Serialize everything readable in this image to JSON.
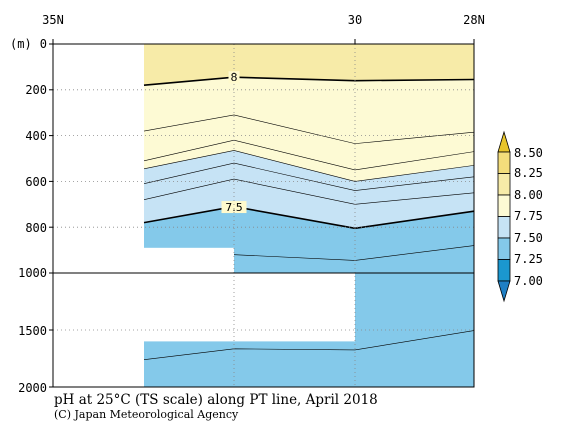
{
  "chart_data": {
    "type": "contour",
    "title": "pH at 25°C (TS scale) along PT line, April 2018",
    "credit": "(C) Japan Meteorological Agency",
    "y_unit_label": "(m)",
    "x_ticks": [
      "35N",
      "30",
      "28N"
    ],
    "y_ticks_upper": [
      "0",
      "200",
      "400",
      "600",
      "800",
      "1000"
    ],
    "y_ticks_lower": [
      "1500",
      "2000"
    ],
    "y_axis": {
      "upper_range_m": [
        0,
        1000
      ],
      "lower_range_m": [
        1000,
        2000
      ],
      "inverted": true,
      "split_at_m": 1000
    },
    "station_columns": 4,
    "colorbar": {
      "labels": [
        "8.50",
        "8.25",
        "8.00",
        "7.75",
        "7.50",
        "7.25",
        "7.00"
      ],
      "bands": [
        {
          "range": [
            8.25,
            8.5
          ],
          "color": "#f3dd7b"
        },
        {
          "range": [
            8.0,
            8.25
          ],
          "color": "#f7eba8"
        },
        {
          "range": [
            7.75,
            8.0
          ],
          "color": "#fdfad4"
        },
        {
          "range": [
            7.5,
            7.75
          ],
          "color": "#c6e3f5"
        },
        {
          "range": [
            7.25,
            7.5
          ],
          "color": "#84c9ea"
        },
        {
          "range": [
            7.0,
            7.25
          ],
          "color": "#1b97cf"
        }
      ],
      "over_color": "#e8c52c",
      "under_color": "#1f7fc4"
    },
    "contour_labels": [
      {
        "text": "8",
        "value": 8.0,
        "station": 1,
        "depth_m": 145
      },
      {
        "text": "7.5",
        "value": 7.5,
        "station": 1,
        "depth_m": 712
      }
    ],
    "contours_upper": [
      {
        "value": 8.0,
        "bold": true,
        "depths_m": [
          180,
          145,
          160,
          155
        ]
      },
      {
        "value": 7.9,
        "bold": false,
        "depths_m": [
          380,
          310,
          435,
          385
        ]
      },
      {
        "value": 7.8,
        "bold": false,
        "depths_m": [
          510,
          420,
          550,
          470
        ]
      },
      {
        "value": 7.75,
        "bold": false,
        "depths_m": [
          545,
          465,
          600,
          530
        ]
      },
      {
        "value": 7.7,
        "bold": false,
        "depths_m": [
          610,
          520,
          640,
          580
        ]
      },
      {
        "value": 7.6,
        "bold": false,
        "depths_m": [
          680,
          590,
          700,
          650
        ]
      },
      {
        "value": 7.5,
        "bold": true,
        "depths_m": [
          780,
          710,
          805,
          730
        ]
      },
      {
        "value": 7.4,
        "bold": false,
        "depths_m": [
          null,
          920,
          945,
          880
        ]
      }
    ],
    "contours_lower": [
      {
        "value": 7.4,
        "bold": false,
        "depths_m": [
          1760,
          1665,
          1675,
          1505
        ]
      }
    ]
  }
}
